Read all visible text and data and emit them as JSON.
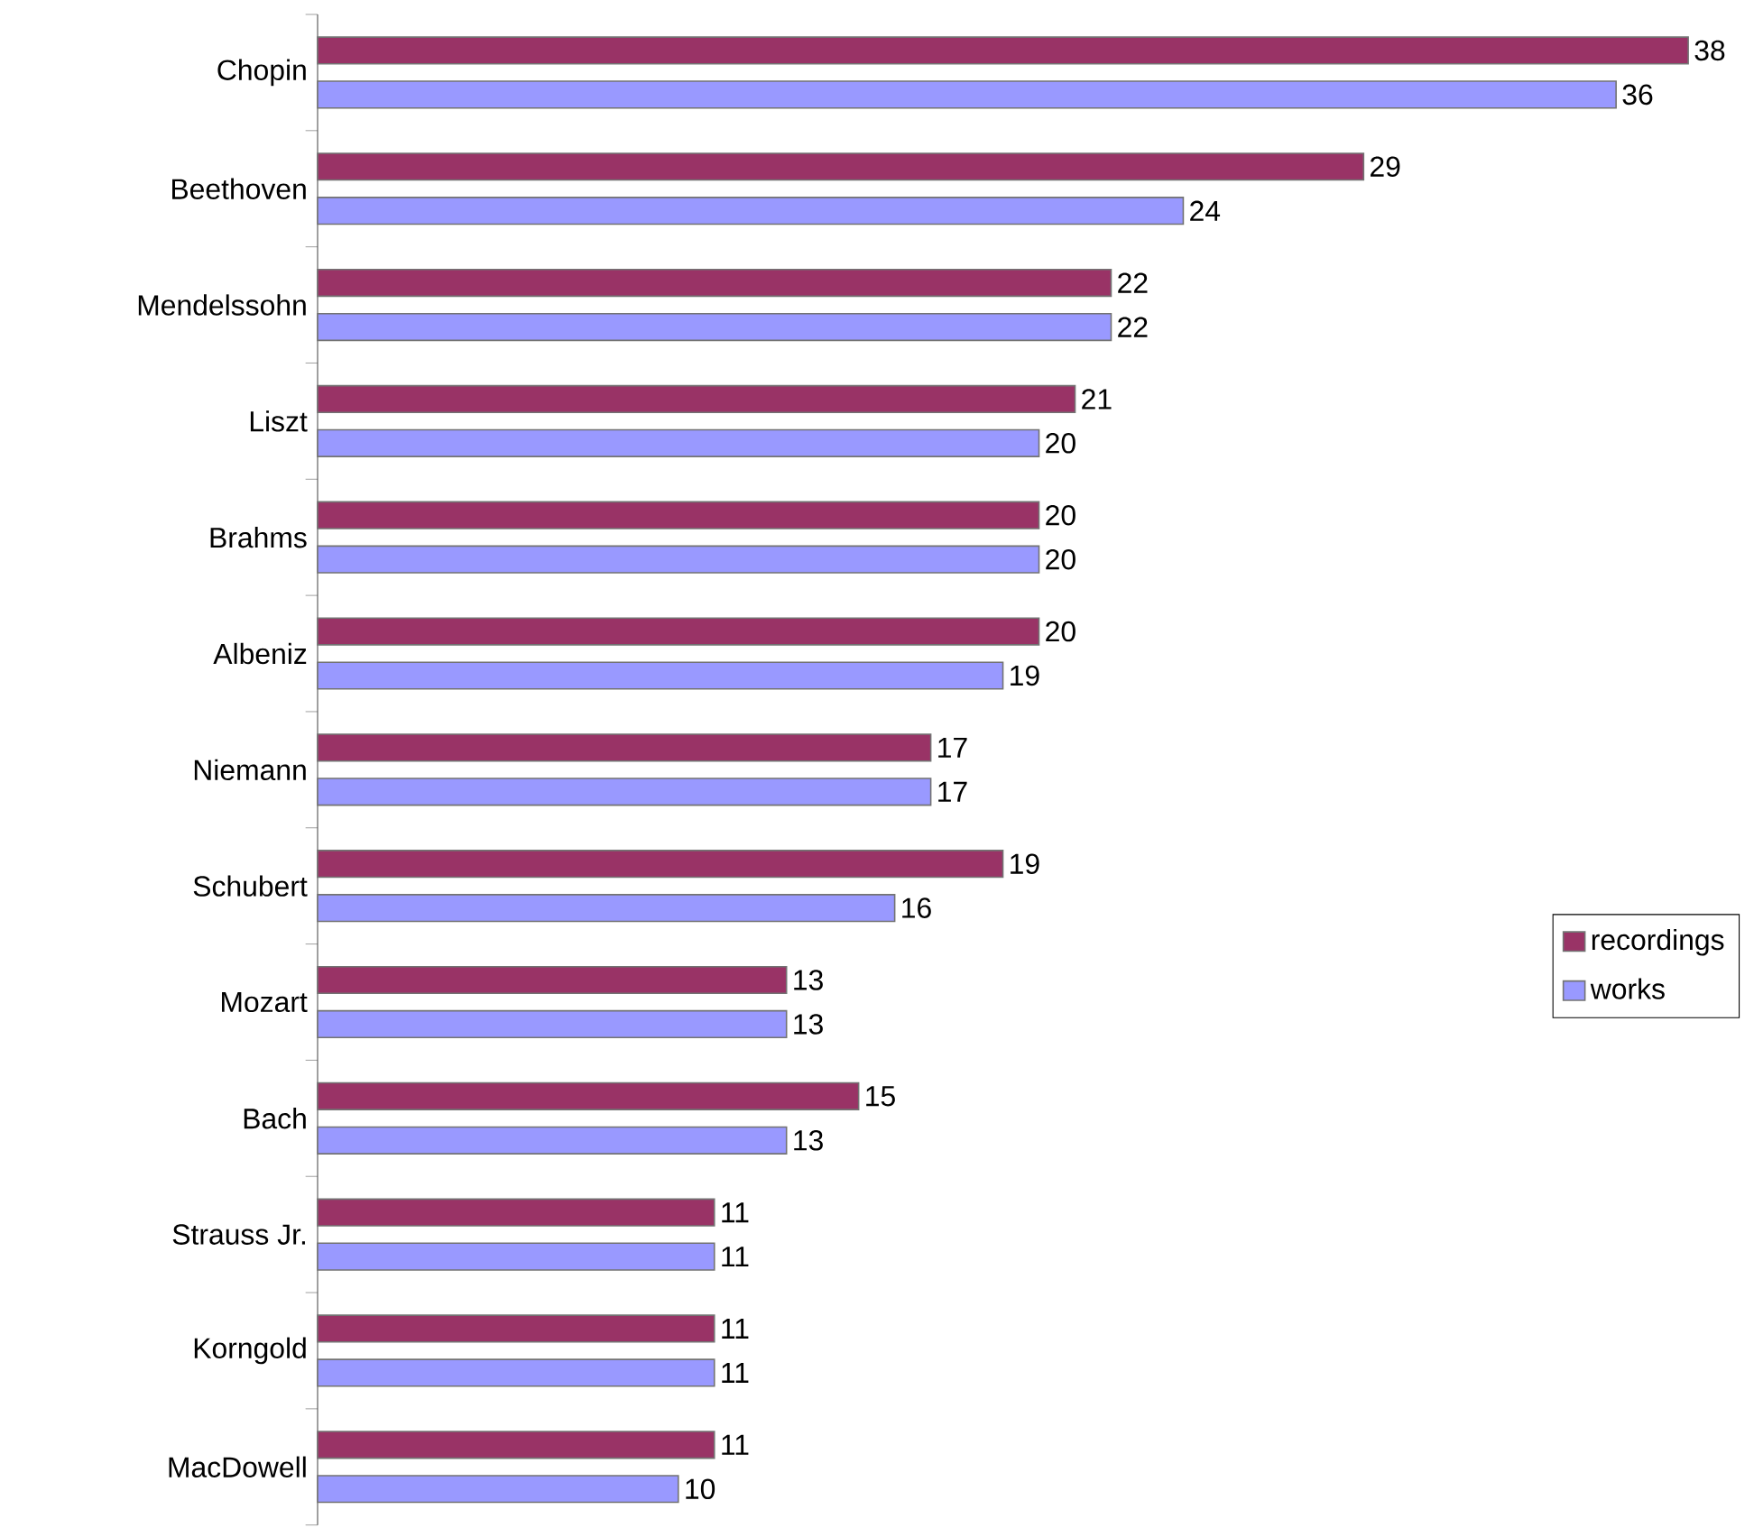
{
  "chart_data": {
    "type": "bar",
    "orientation": "horizontal",
    "data_labels": true,
    "legend": "right",
    "categories": [
      "Chopin",
      "Beethoven",
      "Mendelssohn",
      "Liszt",
      "Brahms",
      "Albeniz",
      "Niemann",
      "Schubert",
      "Mozart",
      "Bach",
      "Strauss Jr.",
      "Korngold",
      "MacDowell"
    ],
    "series": [
      {
        "name": "recordings",
        "color": "#993366",
        "values": [
          38,
          29,
          22,
          21,
          20,
          20,
          17,
          19,
          13,
          15,
          11,
          11,
          11
        ]
      },
      {
        "name": "works",
        "color": "#9999ff",
        "values": [
          36,
          24,
          22,
          20,
          20,
          19,
          17,
          16,
          13,
          13,
          11,
          11,
          10
        ]
      }
    ]
  }
}
